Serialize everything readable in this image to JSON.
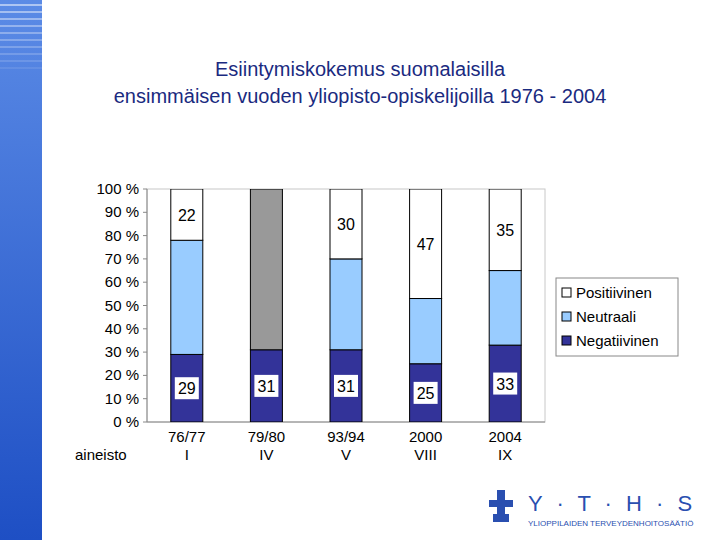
{
  "chart_data": {
    "type": "bar",
    "stacked": true,
    "title": "Esiintymiskokemus suomalaisilla\nensimmäisen vuoden yliopisto-opiskelijoilla 1976 - 2004",
    "x_label": "aineisto",
    "categories": [
      "76/77\nI",
      "79/80\nIV",
      "93/94\nV",
      "2000\nVIII",
      "2004\nIX"
    ],
    "series": [
      {
        "name": "Negatiivinen",
        "color": "#333399",
        "values": [
          29,
          31,
          31,
          25,
          33
        ],
        "data_labels": true
      },
      {
        "name": "Neutraali",
        "color": "#99ccff",
        "values": [
          49,
          null,
          39,
          28,
          32
        ]
      },
      {
        "name": "Positiivinen",
        "color": "#ffffff",
        "values": [
          22,
          null,
          30,
          47,
          35
        ],
        "data_labels": true
      },
      {
        "name": null,
        "color": "#999999",
        "values": [
          null,
          69,
          null,
          null,
          null
        ]
      }
    ],
    "ylim": [
      0,
      100
    ],
    "yticks": [
      {
        "value": 0,
        "label": "0 %"
      },
      {
        "value": 10,
        "label": "10 %"
      },
      {
        "value": 20,
        "label": "20 %"
      },
      {
        "value": 30,
        "label": "30 %"
      },
      {
        "value": 40,
        "label": "40 %"
      },
      {
        "value": 50,
        "label": "50 %"
      },
      {
        "value": 60,
        "label": "60 %"
      },
      {
        "value": 70,
        "label": "70 %"
      },
      {
        "value": 80,
        "label": "80 %"
      },
      {
        "value": 90,
        "label": "90 %"
      },
      {
        "value": 100,
        "label": "100 %"
      }
    ],
    "legend": "right",
    "grid": false
  },
  "logo": {
    "title": "Y · T · H · S",
    "subtitle": "YLIOPPILAIDEN TERVEYDENHOITOSÄÄTIÖ"
  }
}
